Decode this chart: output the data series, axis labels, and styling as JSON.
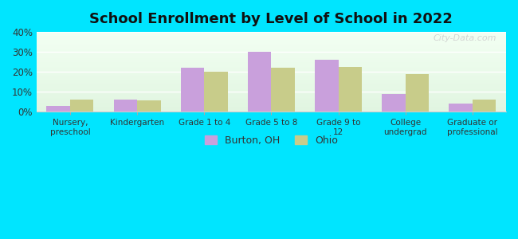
{
  "title": "School Enrollment by Level of School in 2022",
  "categories": [
    "Nursery,\npreschool",
    "Kindergarten",
    "Grade 1 to 4",
    "Grade 5 to 8",
    "Grade 9 to\n12",
    "College\nundergrad",
    "Graduate or\nprofessional"
  ],
  "burton_values": [
    3,
    6,
    22,
    30,
    26,
    9,
    4
  ],
  "ohio_values": [
    6,
    5.5,
    20,
    22,
    22.5,
    19,
    6
  ],
  "burton_color": "#c9a0dc",
  "ohio_color": "#c8cc8a",
  "background_outer": "#00e5ff",
  "ylim": [
    0,
    40
  ],
  "yticks": [
    0,
    10,
    20,
    30,
    40
  ],
  "bar_width": 0.35,
  "legend_burton": "Burton, OH",
  "legend_ohio": "Ohio",
  "watermark": "City-Data.com"
}
